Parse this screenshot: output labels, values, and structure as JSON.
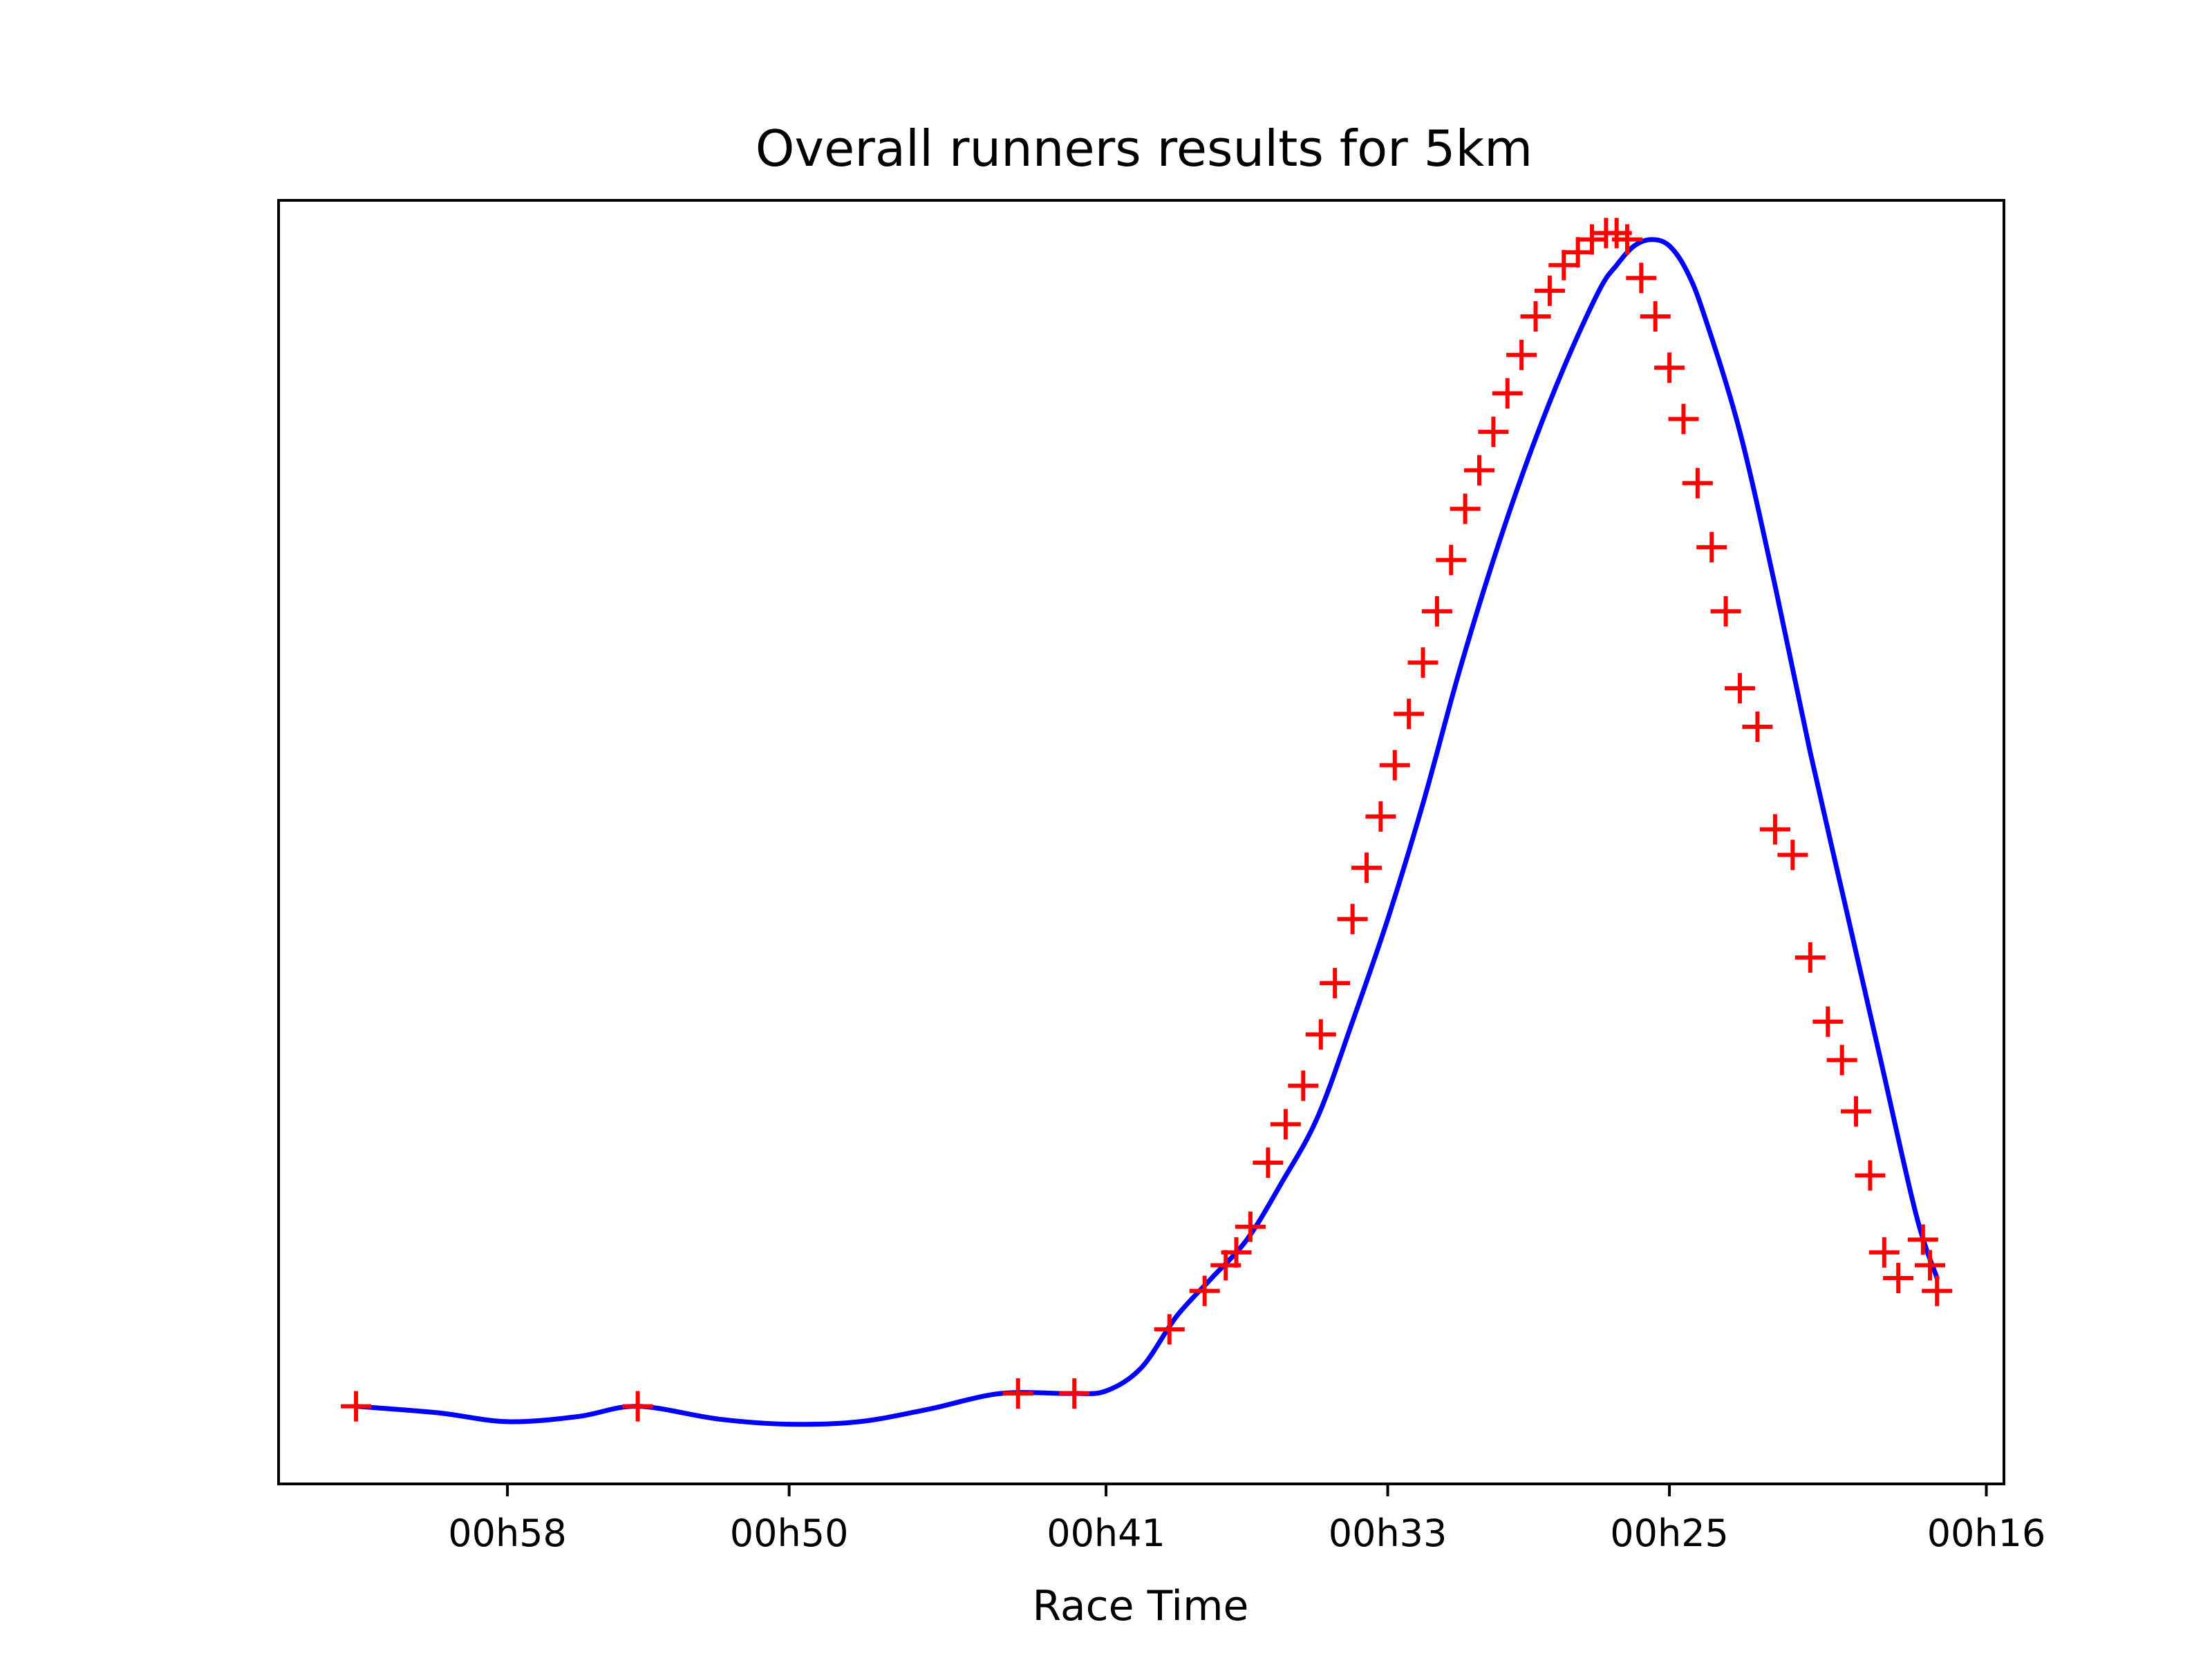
{
  "chart_data": {
    "type": "scatter",
    "title": "Overall runners results for 5km",
    "xlabel": "Race Time",
    "ylabel": "",
    "x_axis": {
      "unit": "minutes",
      "reversed": true,
      "range": [
        64.5,
        15.5
      ],
      "ticks": [
        {
          "value": 58,
          "label": "00h58"
        },
        {
          "value": 50,
          "label": "00h50"
        },
        {
          "value": 41,
          "label": "00h41"
        },
        {
          "value": 33,
          "label": "00h33"
        },
        {
          "value": 25,
          "label": "00h25"
        },
        {
          "value": 16,
          "label": "00h16"
        }
      ]
    },
    "y_axis": {
      "range": [
        0,
        1
      ],
      "ticks_visible": false
    },
    "grid": false,
    "legend": "none",
    "series": [
      {
        "kind": "marker",
        "marker": "+",
        "color": "#ff0000",
        "x": [
          62.3,
          54.3,
          43.5,
          41.9,
          39.2,
          38.2,
          37.6,
          37.3,
          36.9,
          36.4,
          35.9,
          35.4,
          34.9,
          34.5,
          34.0,
          33.6,
          33.2,
          32.8,
          32.4,
          32.0,
          31.6,
          31.2,
          30.8,
          30.4,
          30.0,
          29.6,
          29.2,
          28.8,
          28.4,
          28.0,
          27.6,
          27.2,
          26.8,
          26.5,
          26.2,
          25.8,
          25.4,
          25.0,
          24.6,
          24.2,
          23.8,
          23.4,
          23.0,
          22.5,
          22.0,
          21.5,
          21.0,
          20.5,
          20.1,
          19.7,
          19.3,
          18.9,
          18.5,
          17.8,
          17.6,
          17.4
        ],
        "y": [
          0.06,
          0.06,
          0.07,
          0.07,
          0.12,
          0.15,
          0.17,
          0.18,
          0.2,
          0.25,
          0.28,
          0.31,
          0.35,
          0.39,
          0.44,
          0.48,
          0.52,
          0.56,
          0.6,
          0.64,
          0.68,
          0.72,
          0.76,
          0.79,
          0.82,
          0.85,
          0.88,
          0.91,
          0.93,
          0.95,
          0.96,
          0.97,
          0.975,
          0.975,
          0.97,
          0.94,
          0.91,
          0.87,
          0.83,
          0.78,
          0.73,
          0.68,
          0.62,
          0.59,
          0.51,
          0.49,
          0.41,
          0.36,
          0.33,
          0.29,
          0.24,
          0.18,
          0.16,
          0.19,
          0.17,
          0.15
        ]
      },
      {
        "kind": "line",
        "color": "#0000ff",
        "x": [
          62.3,
          60.0,
          58.0,
          56.0,
          54.3,
          52.0,
          50.0,
          48.0,
          46.0,
          44.0,
          42.0,
          41.0,
          40.0,
          39.0,
          38.0,
          37.0,
          36.0,
          35.0,
          34.0,
          33.0,
          32.0,
          31.0,
          30.0,
          29.0,
          28.0,
          27.0,
          26.5,
          26.0,
          25.5,
          25.0,
          24.5,
          24.0,
          23.0,
          22.0,
          21.0,
          20.0,
          19.0,
          18.0,
          17.4
        ],
        "y": [
          0.06,
          0.055,
          0.048,
          0.052,
          0.06,
          0.05,
          0.046,
          0.048,
          0.058,
          0.07,
          0.07,
          0.072,
          0.09,
          0.13,
          0.16,
          0.19,
          0.235,
          0.285,
          0.36,
          0.44,
          0.53,
          0.63,
          0.72,
          0.8,
          0.87,
          0.93,
          0.95,
          0.965,
          0.97,
          0.965,
          0.945,
          0.91,
          0.82,
          0.7,
          0.57,
          0.45,
          0.33,
          0.21,
          0.16
        ]
      }
    ]
  }
}
